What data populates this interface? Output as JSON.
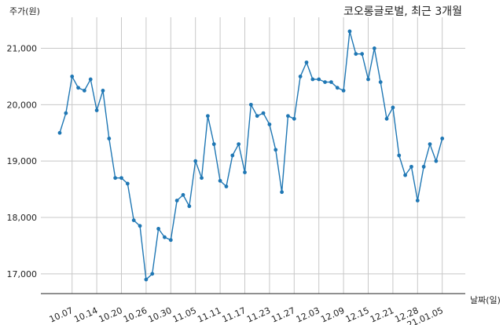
{
  "chart_data": {
    "type": "line",
    "title": "코오롱글로벌, 최근 3개월",
    "ylabel": "주가(원)",
    "xlabel": "날짜(일)",
    "ylim": [
      16650,
      21550
    ],
    "x_ticks": [
      "10.07",
      "10.14",
      "10.20",
      "10.26",
      "10.30",
      "11.05",
      "11.11",
      "11.17",
      "11.23",
      "11.27",
      "12.03",
      "12.09",
      "12.15",
      "12.21",
      "12.28",
      "21.01.05"
    ],
    "y_ticks": [
      17000,
      18000,
      19000,
      20000,
      21000
    ],
    "grid": true,
    "x": [
      "10.05",
      "10.06",
      "10.07",
      "10.08",
      "10.12",
      "10.13",
      "10.14",
      "10.15",
      "10.16",
      "10.19",
      "10.20",
      "10.21",
      "10.22",
      "10.23",
      "10.26",
      "10.27",
      "10.28",
      "10.29",
      "10.30",
      "11.02",
      "11.03",
      "11.04",
      "11.05",
      "11.06",
      "11.09",
      "11.10",
      "11.11",
      "11.12",
      "11.13",
      "11.16",
      "11.17",
      "11.18",
      "11.19",
      "11.20",
      "11.23",
      "11.24",
      "11.25",
      "11.26",
      "11.27",
      "11.30",
      "12.01",
      "12.02",
      "12.03",
      "12.04",
      "12.07",
      "12.08",
      "12.09",
      "12.10",
      "12.11",
      "12.14",
      "12.15",
      "12.16",
      "12.17",
      "12.18",
      "12.21",
      "12.22",
      "12.23",
      "12.24",
      "12.28",
      "12.29",
      "12.30",
      "21.01.04",
      "21.01.05"
    ],
    "series": [
      {
        "color": "#1f77b4",
        "values": [
          19500,
          19850,
          20500,
          20300,
          20250,
          20450,
          19900,
          20250,
          19400,
          18700,
          18700,
          18600,
          17950,
          17850,
          16900,
          17000,
          17800,
          17650,
          17600,
          18300,
          18400,
          18200,
          19000,
          18700,
          19800,
          19300,
          18650,
          18550,
          19100,
          19300,
          18800,
          20000,
          19800,
          19850,
          19650,
          19200,
          18450,
          19800,
          19750,
          20500,
          20750,
          20450,
          20450,
          20400,
          20400,
          20300,
          20250,
          21300,
          20900,
          20900,
          20450,
          21000,
          20400,
          19750,
          19950,
          19100,
          18750,
          18900,
          18300,
          18900,
          19300,
          19000,
          19400
        ]
      }
    ]
  }
}
